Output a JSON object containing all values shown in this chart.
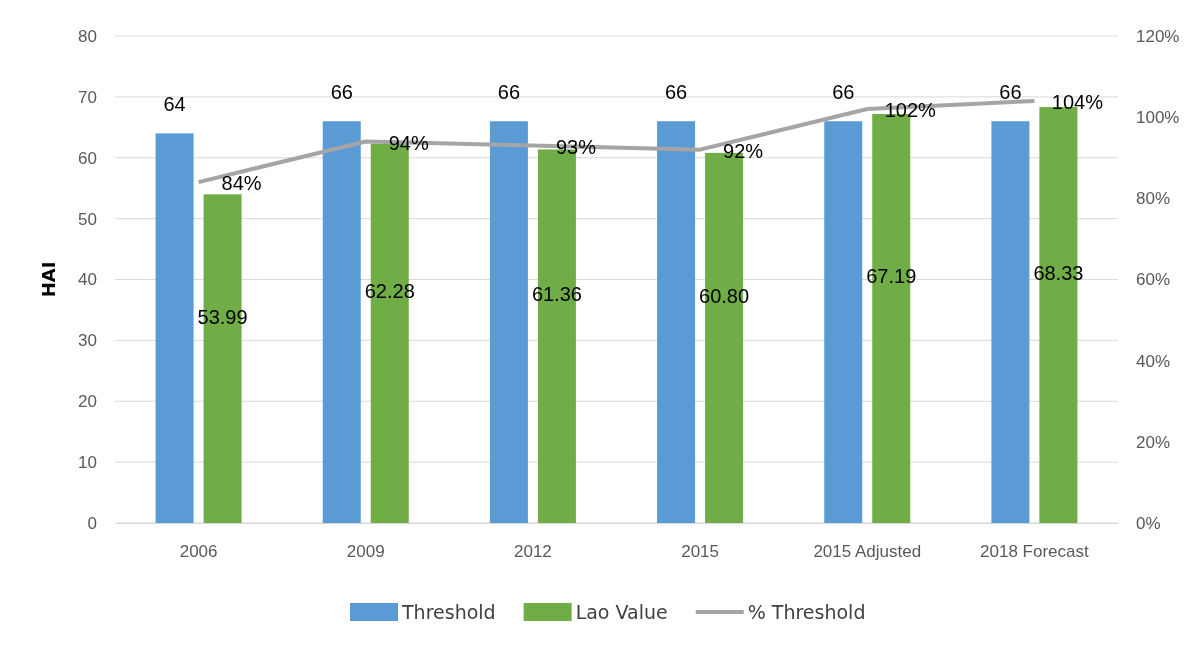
{
  "chart_data": {
    "type": "bar",
    "ylabel": "HAI",
    "categories": [
      "2006",
      "2009",
      "2012",
      "2015",
      "2015 Adjusted",
      "2018 Forecast"
    ],
    "series": [
      {
        "name": "Threshold",
        "color": "#5b9bd5",
        "values": [
          64,
          66,
          66,
          66,
          66,
          66
        ],
        "value_labels": [
          "64",
          "66",
          "66",
          "66",
          "66",
          "66"
        ]
      },
      {
        "name": "Lao Value",
        "color": "#70ad47",
        "values": [
          53.99,
          62.28,
          61.36,
          60.8,
          67.19,
          68.33
        ],
        "value_labels": [
          "53.99",
          "62.28",
          "61.36",
          "60.80",
          "67.19",
          "68.33"
        ]
      },
      {
        "name": "% Threshold",
        "type": "line",
        "axis": "y2",
        "color": "#a5a5a5",
        "values": [
          84,
          94,
          93,
          92,
          102,
          104
        ],
        "value_labels": [
          "84%",
          "94%",
          "93%",
          "92%",
          "102%",
          "104%"
        ]
      }
    ],
    "ylim": [
      0,
      80
    ],
    "yticks": [
      0,
      10,
      20,
      30,
      40,
      50,
      60,
      70,
      80
    ],
    "y2lim": [
      0,
      120
    ],
    "y2ticks": [
      {
        "value": 0,
        "label": "0%"
      },
      {
        "value": 20,
        "label": "20%"
      },
      {
        "value": 40,
        "label": "40%"
      },
      {
        "value": 60,
        "label": "60%"
      },
      {
        "value": 80,
        "label": "80%"
      },
      {
        "value": 100,
        "label": "100%"
      },
      {
        "value": 120,
        "label": "120%"
      }
    ],
    "grid": "y",
    "legend": "bottom",
    "marker": "none",
    "line_style": "solid"
  }
}
